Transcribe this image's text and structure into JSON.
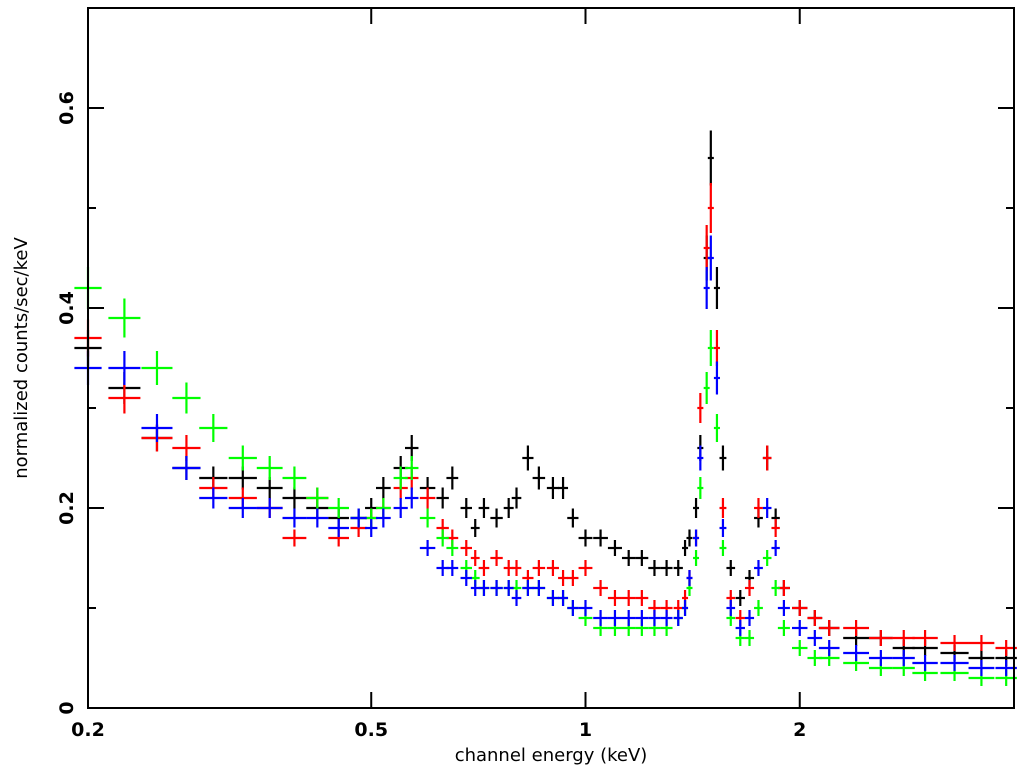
{
  "chart_data": {
    "type": "scatter",
    "title": "",
    "xlabel": "channel energy (keV)",
    "ylabel": "normalized counts/sec/keV",
    "xscale": "log",
    "xlim": [
      0.2,
      4.0
    ],
    "ylim": [
      0,
      0.7
    ],
    "xticks": [
      {
        "value": 0.2,
        "label": "0.2"
      },
      {
        "value": 0.5,
        "label": "0.5"
      },
      {
        "value": 1,
        "label": "1"
      },
      {
        "value": 2,
        "label": "2"
      }
    ],
    "yticks": [
      {
        "value": 0,
        "label": "0"
      },
      {
        "value": 0.2,
        "label": "0.2"
      },
      {
        "value": 0.4,
        "label": "0.4"
      },
      {
        "value": 0.6,
        "label": "0.6"
      }
    ],
    "grid": false,
    "legend": "none",
    "markers": "error-bar crosses",
    "series": [
      {
        "color": "#000000",
        "x": [
          0.2,
          0.225,
          0.25,
          0.275,
          0.3,
          0.33,
          0.36,
          0.39,
          0.42,
          0.45,
          0.48,
          0.5,
          0.52,
          0.55,
          0.57,
          0.6,
          0.63,
          0.65,
          0.68,
          0.7,
          0.72,
          0.75,
          0.78,
          0.8,
          0.83,
          0.86,
          0.9,
          0.93,
          0.96,
          1.0,
          1.05,
          1.1,
          1.15,
          1.2,
          1.25,
          1.3,
          1.35,
          1.38,
          1.4,
          1.43,
          1.45,
          1.48,
          1.5,
          1.53,
          1.56,
          1.6,
          1.65,
          1.7,
          1.75,
          1.8,
          1.85,
          1.9,
          2.0,
          2.1,
          2.2,
          2.4,
          2.6,
          2.8,
          3.0,
          3.3,
          3.6,
          3.9
        ],
        "y": [
          0.36,
          0.32,
          0.27,
          0.24,
          0.23,
          0.23,
          0.22,
          0.21,
          0.2,
          0.19,
          0.19,
          0.2,
          0.22,
          0.24,
          0.26,
          0.22,
          0.21,
          0.23,
          0.2,
          0.18,
          0.2,
          0.19,
          0.2,
          0.21,
          0.25,
          0.23,
          0.22,
          0.22,
          0.19,
          0.17,
          0.17,
          0.16,
          0.15,
          0.15,
          0.14,
          0.14,
          0.14,
          0.16,
          0.17,
          0.2,
          0.26,
          0.45,
          0.55,
          0.42,
          0.25,
          0.14,
          0.11,
          0.13,
          0.19,
          0.25,
          0.19,
          0.12,
          0.1,
          0.09,
          0.08,
          0.07,
          0.07,
          0.06,
          0.06,
          0.055,
          0.05,
          0.05
        ]
      },
      {
        "color": "#ff0000",
        "x": [
          0.2,
          0.225,
          0.25,
          0.275,
          0.3,
          0.33,
          0.36,
          0.39,
          0.42,
          0.45,
          0.48,
          0.5,
          0.52,
          0.55,
          0.57,
          0.6,
          0.63,
          0.65,
          0.68,
          0.7,
          0.72,
          0.75,
          0.78,
          0.8,
          0.83,
          0.86,
          0.9,
          0.93,
          0.96,
          1.0,
          1.05,
          1.1,
          1.15,
          1.2,
          1.25,
          1.3,
          1.35,
          1.38,
          1.4,
          1.43,
          1.45,
          1.48,
          1.5,
          1.53,
          1.56,
          1.6,
          1.65,
          1.7,
          1.75,
          1.8,
          1.85,
          1.9,
          2.0,
          2.1,
          2.2,
          2.4,
          2.6,
          2.8,
          3.0,
          3.3,
          3.6,
          3.9
        ],
        "y": [
          0.37,
          0.31,
          0.27,
          0.26,
          0.22,
          0.21,
          0.2,
          0.17,
          0.21,
          0.17,
          0.18,
          0.19,
          0.2,
          0.22,
          0.23,
          0.21,
          0.18,
          0.17,
          0.16,
          0.15,
          0.14,
          0.15,
          0.14,
          0.14,
          0.13,
          0.14,
          0.14,
          0.13,
          0.13,
          0.14,
          0.12,
          0.11,
          0.11,
          0.11,
          0.1,
          0.1,
          0.1,
          0.11,
          0.13,
          0.17,
          0.3,
          0.46,
          0.5,
          0.36,
          0.2,
          0.11,
          0.09,
          0.12,
          0.2,
          0.25,
          0.18,
          0.12,
          0.1,
          0.09,
          0.08,
          0.08,
          0.07,
          0.07,
          0.07,
          0.065,
          0.065,
          0.06
        ]
      },
      {
        "color": "#00ff00",
        "x": [
          0.2,
          0.225,
          0.25,
          0.275,
          0.3,
          0.33,
          0.36,
          0.39,
          0.42,
          0.45,
          0.48,
          0.5,
          0.52,
          0.55,
          0.57,
          0.6,
          0.63,
          0.65,
          0.68,
          0.7,
          0.72,
          0.75,
          0.78,
          0.8,
          0.83,
          0.86,
          0.9,
          0.93,
          0.96,
          1.0,
          1.05,
          1.1,
          1.15,
          1.2,
          1.25,
          1.3,
          1.35,
          1.38,
          1.4,
          1.43,
          1.45,
          1.48,
          1.5,
          1.53,
          1.56,
          1.6,
          1.65,
          1.7,
          1.75,
          1.8,
          1.85,
          1.9,
          2.0,
          2.1,
          2.2,
          2.4,
          2.6,
          2.8,
          3.0,
          3.3,
          3.6,
          3.9
        ],
        "y": [
          0.42,
          0.39,
          0.34,
          0.31,
          0.28,
          0.25,
          0.24,
          0.23,
          0.21,
          0.2,
          0.19,
          0.19,
          0.2,
          0.23,
          0.24,
          0.19,
          0.17,
          0.16,
          0.14,
          0.13,
          0.12,
          0.12,
          0.12,
          0.12,
          0.12,
          0.12,
          0.11,
          0.11,
          0.1,
          0.09,
          0.08,
          0.08,
          0.08,
          0.08,
          0.08,
          0.08,
          0.09,
          0.1,
          0.12,
          0.15,
          0.22,
          0.32,
          0.36,
          0.28,
          0.16,
          0.09,
          0.07,
          0.07,
          0.1,
          0.15,
          0.12,
          0.08,
          0.06,
          0.05,
          0.05,
          0.045,
          0.04,
          0.04,
          0.035,
          0.035,
          0.03,
          0.03
        ]
      },
      {
        "color": "#0000ff",
        "x": [
          0.2,
          0.225,
          0.25,
          0.275,
          0.3,
          0.33,
          0.36,
          0.39,
          0.42,
          0.45,
          0.48,
          0.5,
          0.52,
          0.55,
          0.57,
          0.6,
          0.63,
          0.65,
          0.68,
          0.7,
          0.72,
          0.75,
          0.78,
          0.8,
          0.83,
          0.86,
          0.9,
          0.93,
          0.96,
          1.0,
          1.05,
          1.1,
          1.15,
          1.2,
          1.25,
          1.3,
          1.35,
          1.38,
          1.4,
          1.43,
          1.45,
          1.48,
          1.5,
          1.53,
          1.56,
          1.6,
          1.65,
          1.7,
          1.75,
          1.8,
          1.85,
          1.9,
          2.0,
          2.1,
          2.2,
          2.4,
          2.6,
          2.8,
          3.0,
          3.3,
          3.6,
          3.9
        ],
        "y": [
          0.34,
          0.34,
          0.28,
          0.24,
          0.21,
          0.2,
          0.2,
          0.19,
          0.19,
          0.18,
          0.19,
          0.18,
          0.19,
          0.2,
          0.21,
          0.16,
          0.14,
          0.14,
          0.13,
          0.12,
          0.12,
          0.12,
          0.12,
          0.11,
          0.12,
          0.12,
          0.11,
          0.11,
          0.1,
          0.1,
          0.09,
          0.09,
          0.09,
          0.09,
          0.09,
          0.09,
          0.09,
          0.1,
          0.13,
          0.17,
          0.25,
          0.42,
          0.45,
          0.33,
          0.18,
          0.1,
          0.08,
          0.09,
          0.14,
          0.2,
          0.16,
          0.1,
          0.08,
          0.07,
          0.06,
          0.055,
          0.05,
          0.05,
          0.045,
          0.045,
          0.04,
          0.04
        ]
      }
    ]
  }
}
